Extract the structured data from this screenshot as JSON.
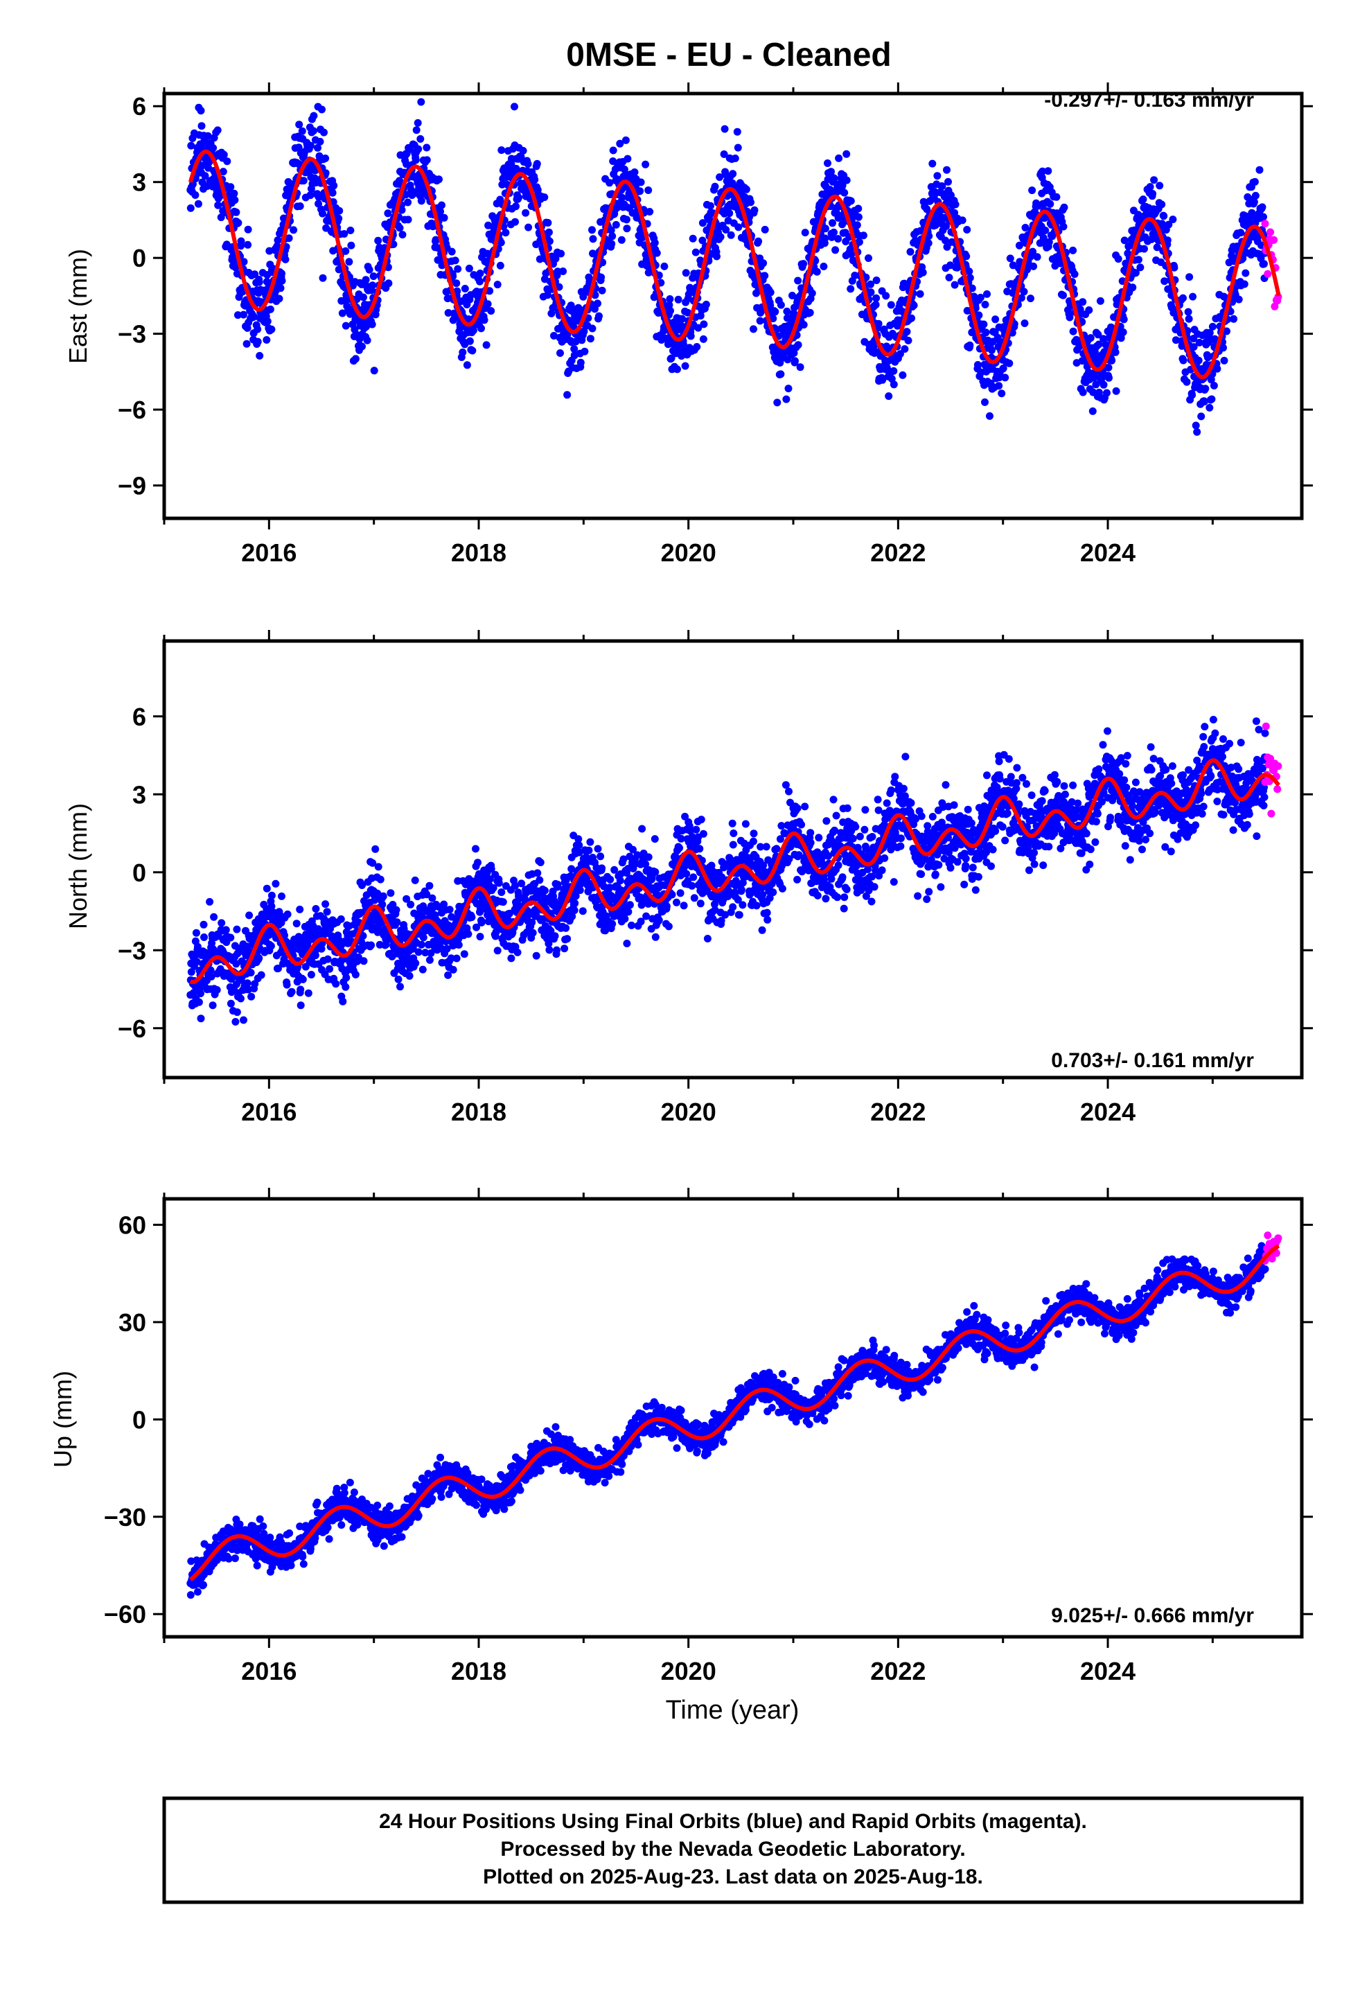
{
  "chart_data": [
    {
      "type": "scatter",
      "title": "0MSE  - EU - Cleaned",
      "ylabel": "East (mm)",
      "xlabel": "",
      "xlim": [
        2015.0,
        2025.85
      ],
      "ylim": [
        -10.3,
        6.5
      ],
      "x_ticks": [
        "2016",
        "2018",
        "2020",
        "2022",
        "2024"
      ],
      "y_ticks": [
        "6",
        "3",
        "0",
        "−3",
        "−6",
        "−9"
      ],
      "rate_label": "-0.297+/- 0.163 mm/yr",
      "rate_label_position": "top-right",
      "series": [
        {
          "name": "Final Orbits",
          "color": "#0000ff",
          "kind": "points"
        },
        {
          "name": "Rapid Orbits",
          "color": "#ff00ff",
          "kind": "points"
        },
        {
          "name": "Model fit",
          "color": "#ff0000",
          "kind": "line"
        }
      ],
      "model": {
        "t0": 2015.25,
        "intercept": 1.2,
        "slope_mm_per_yr": -0.297,
        "annual_amp": 3.05,
        "annual_phase_peak": 0.4,
        "semiannual_amp": 0.0,
        "scatter_mm": 1.1
      },
      "x_range": [
        2015.25,
        2025.5
      ],
      "rapid_range": [
        2025.5,
        2025.63
      ]
    },
    {
      "type": "scatter",
      "title": "",
      "ylabel": "North (mm)",
      "xlabel": "",
      "xlim": [
        2015.0,
        2025.85
      ],
      "ylim": [
        -7.9,
        8.9
      ],
      "x_ticks": [
        "2016",
        "2018",
        "2020",
        "2022",
        "2024"
      ],
      "y_ticks": [
        "6",
        "3",
        "0",
        "−3",
        "−6"
      ],
      "rate_label": "0.703+/- 0.161 mm/yr",
      "rate_label_position": "bottom-right",
      "series": [
        {
          "name": "Final Orbits",
          "color": "#0000ff",
          "kind": "points"
        },
        {
          "name": "Rapid Orbits",
          "color": "#ff00ff",
          "kind": "points"
        },
        {
          "name": "Model fit",
          "color": "#ff0000",
          "kind": "line"
        }
      ],
      "model": {
        "t0": 2015.25,
        "intercept": -3.6,
        "slope_mm_per_yr": 0.703,
        "annual_amp": 0.45,
        "annual_phase_peak": 0.0,
        "semiannual_amp": 0.6,
        "scatter_mm": 0.9
      },
      "x_range": [
        2015.25,
        2025.5
      ],
      "rapid_range": [
        2025.5,
        2025.63
      ]
    },
    {
      "type": "scatter",
      "title": "",
      "ylabel": "Up (mm)",
      "xlabel": "Time (year)",
      "xlim": [
        2015.0,
        2025.85
      ],
      "ylim": [
        -67,
        68
      ],
      "x_ticks": [
        "2016",
        "2018",
        "2020",
        "2022",
        "2024"
      ],
      "y_ticks": [
        "60",
        "30",
        "0",
        "−30",
        "−60"
      ],
      "rate_label": "9.025+/- 0.666 mm/yr",
      "rate_label_position": "bottom-right",
      "series": [
        {
          "name": "Final Orbits",
          "color": "#0000ff",
          "kind": "points"
        },
        {
          "name": "Rapid Orbits",
          "color": "#ff00ff",
          "kind": "points"
        },
        {
          "name": "Model fit",
          "color": "#ff0000",
          "kind": "line"
        }
      ],
      "model": {
        "t0": 2015.25,
        "intercept": -45.0,
        "slope_mm_per_yr": 9.025,
        "annual_amp": 5.0,
        "annual_phase_peak": 0.67,
        "semiannual_amp": 0.0,
        "scatter_mm": 3.0
      },
      "x_range": [
        2015.25,
        2025.5
      ],
      "rapid_range": [
        2025.5,
        2025.63
      ]
    }
  ],
  "footer": {
    "line1": "24 Hour Positions Using Final Orbits (blue) and Rapid Orbits (magenta).",
    "line2": "Processed by the Nevada Geodetic Laboratory.",
    "line3": "Plotted on 2025-Aug-23. Last data on 2025-Aug-18."
  },
  "colors": {
    "final": "#0000ff",
    "rapid": "#ff00ff",
    "model": "#ff0000",
    "frame": "#000000"
  }
}
